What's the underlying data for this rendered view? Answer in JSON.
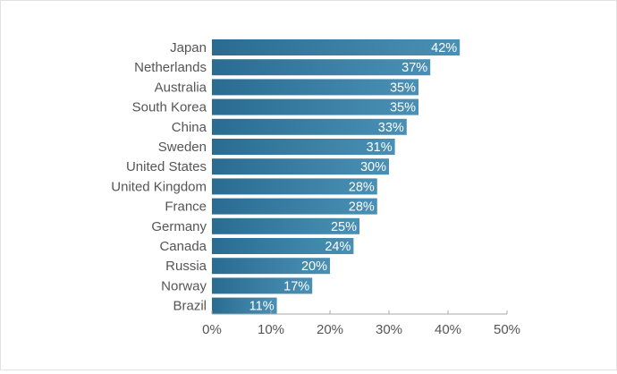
{
  "chart_data": {
    "type": "bar",
    "orientation": "horizontal",
    "title": "",
    "xlabel": "",
    "ylabel": "",
    "categories": [
      "Japan",
      "Netherlands",
      "Australia",
      "South Korea",
      "China",
      "Sweden",
      "United States",
      "United Kingdom",
      "France",
      "Germany",
      "Canada",
      "Russia",
      "Norway",
      "Brazil"
    ],
    "values": [
      42,
      37,
      35,
      35,
      33,
      31,
      30,
      28,
      28,
      25,
      24,
      20,
      17,
      11
    ],
    "value_labels": [
      "42%",
      "37%",
      "35%",
      "35%",
      "33%",
      "31%",
      "30%",
      "28%",
      "28%",
      "25%",
      "24%",
      "20%",
      "17%",
      "11%"
    ],
    "xlim": [
      0,
      50
    ],
    "x_ticks": [
      0,
      10,
      20,
      30,
      40,
      50
    ],
    "x_tick_labels": [
      "0%",
      "10%",
      "20%",
      "30%",
      "40%",
      "50%"
    ],
    "grid": false,
    "legend": "none",
    "colors": {
      "bar_left": "#2a6c91",
      "bar_right": "#4a90b5",
      "axis": "#aaaaaa",
      "text": "#555555",
      "value_text": "#ffffff"
    }
  }
}
